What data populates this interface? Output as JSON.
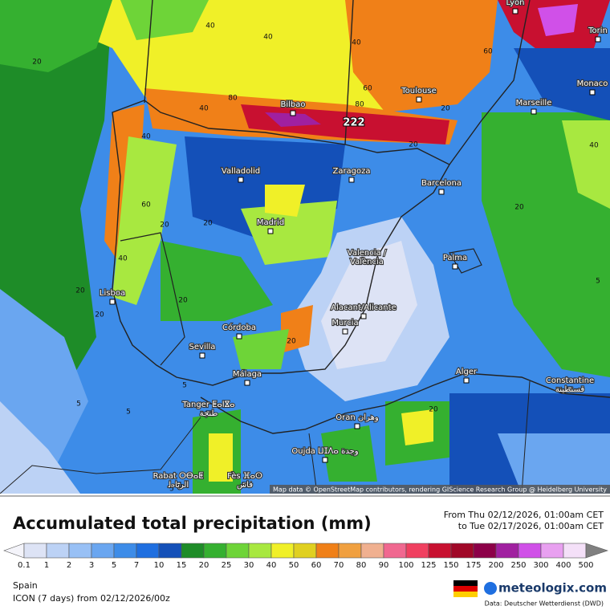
{
  "map": {
    "attribution": "Map data © OpenStreetMap contributors, rendering GIScience Research Group @ Heidelberg University",
    "max_label": "222",
    "cities": [
      {
        "lines": [
          "Lyon"
        ]
      },
      {
        "lines": [
          "Torin"
        ]
      },
      {
        "lines": [
          "Monaco"
        ]
      },
      {
        "lines": [
          "Marseille"
        ]
      },
      {
        "lines": [
          "Toulouse"
        ]
      },
      {
        "lines": [
          "Bilbao"
        ]
      },
      {
        "lines": [
          "Valladolid"
        ]
      },
      {
        "lines": [
          "Zaragoza"
        ]
      },
      {
        "lines": [
          "Barcelona"
        ]
      },
      {
        "lines": [
          "Madrid"
        ]
      },
      {
        "lines": [
          "Valencia /",
          "València"
        ]
      },
      {
        "lines": [
          "Palma"
        ]
      },
      {
        "lines": [
          "Lisboa"
        ]
      },
      {
        "lines": [
          "Alacant/Alicante"
        ]
      },
      {
        "lines": [
          "Murcia"
        ]
      },
      {
        "lines": [
          "Córdoba"
        ]
      },
      {
        "lines": [
          "Sevilla"
        ]
      },
      {
        "lines": [
          "Málaga"
        ]
      },
      {
        "lines": [
          "Alger"
        ]
      },
      {
        "lines": [
          "Constantine",
          "قسنطينة"
        ]
      },
      {
        "lines": [
          "Tanger ⵟⴰⵏⴵⴰ",
          "طنجة"
        ]
      },
      {
        "lines": [
          "Oran وهران"
        ]
      },
      {
        "lines": [
          "Oujda ⵡⵊⴷⴰ وجدة"
        ]
      },
      {
        "lines": [
          "Rabat ⵔⴱⴰⵟ",
          "الرباط"
        ]
      },
      {
        "lines": [
          "Fès ⴼⴰⵙ",
          "فاس"
        ]
      }
    ],
    "contour_labels": [
      40,
      20,
      40,
      40,
      80,
      60,
      80,
      40,
      40,
      60,
      20,
      20,
      40,
      20,
      20,
      20,
      20,
      20,
      5,
      5,
      5,
      5,
      20,
      20,
      60,
      40,
      20,
      5
    ]
  },
  "footer": {
    "title": "Accumulated total precipitation (mm)",
    "from": "From Thu 02/12/2026, 01:00am CET",
    "to": "to Tue 02/17/2026, 01:00am CET",
    "region": "Spain",
    "model": "ICON (7 days)  from  02/12/2026/00z",
    "brand": "meteologix.com",
    "source": "Data: Deutscher Wetterdienst (DWD)"
  },
  "legend": {
    "ticks": [
      0.1,
      1,
      2,
      3,
      5,
      7,
      10,
      15,
      20,
      25,
      30,
      40,
      50,
      60,
      70,
      80,
      90,
      100,
      125,
      150,
      175,
      200,
      250,
      300,
      400,
      500
    ],
    "colors": [
      "#f4f4fa",
      "#dde3f5",
      "#bcd2f5",
      "#98c0f5",
      "#6aa6f0",
      "#3d8ce8",
      "#1f6fe0",
      "#1450b8",
      "#1e8c28",
      "#35b030",
      "#6ed438",
      "#a8e840",
      "#f0f028",
      "#e0d020",
      "#f08018",
      "#f0a040",
      "#f0b090",
      "#f06890",
      "#f04060",
      "#c81030",
      "#a00828",
      "#8c0048",
      "#a020a0",
      "#d050e8",
      "#e8a0f0",
      "#f4e0f8",
      "#d0d0d0",
      "#808080"
    ]
  }
}
